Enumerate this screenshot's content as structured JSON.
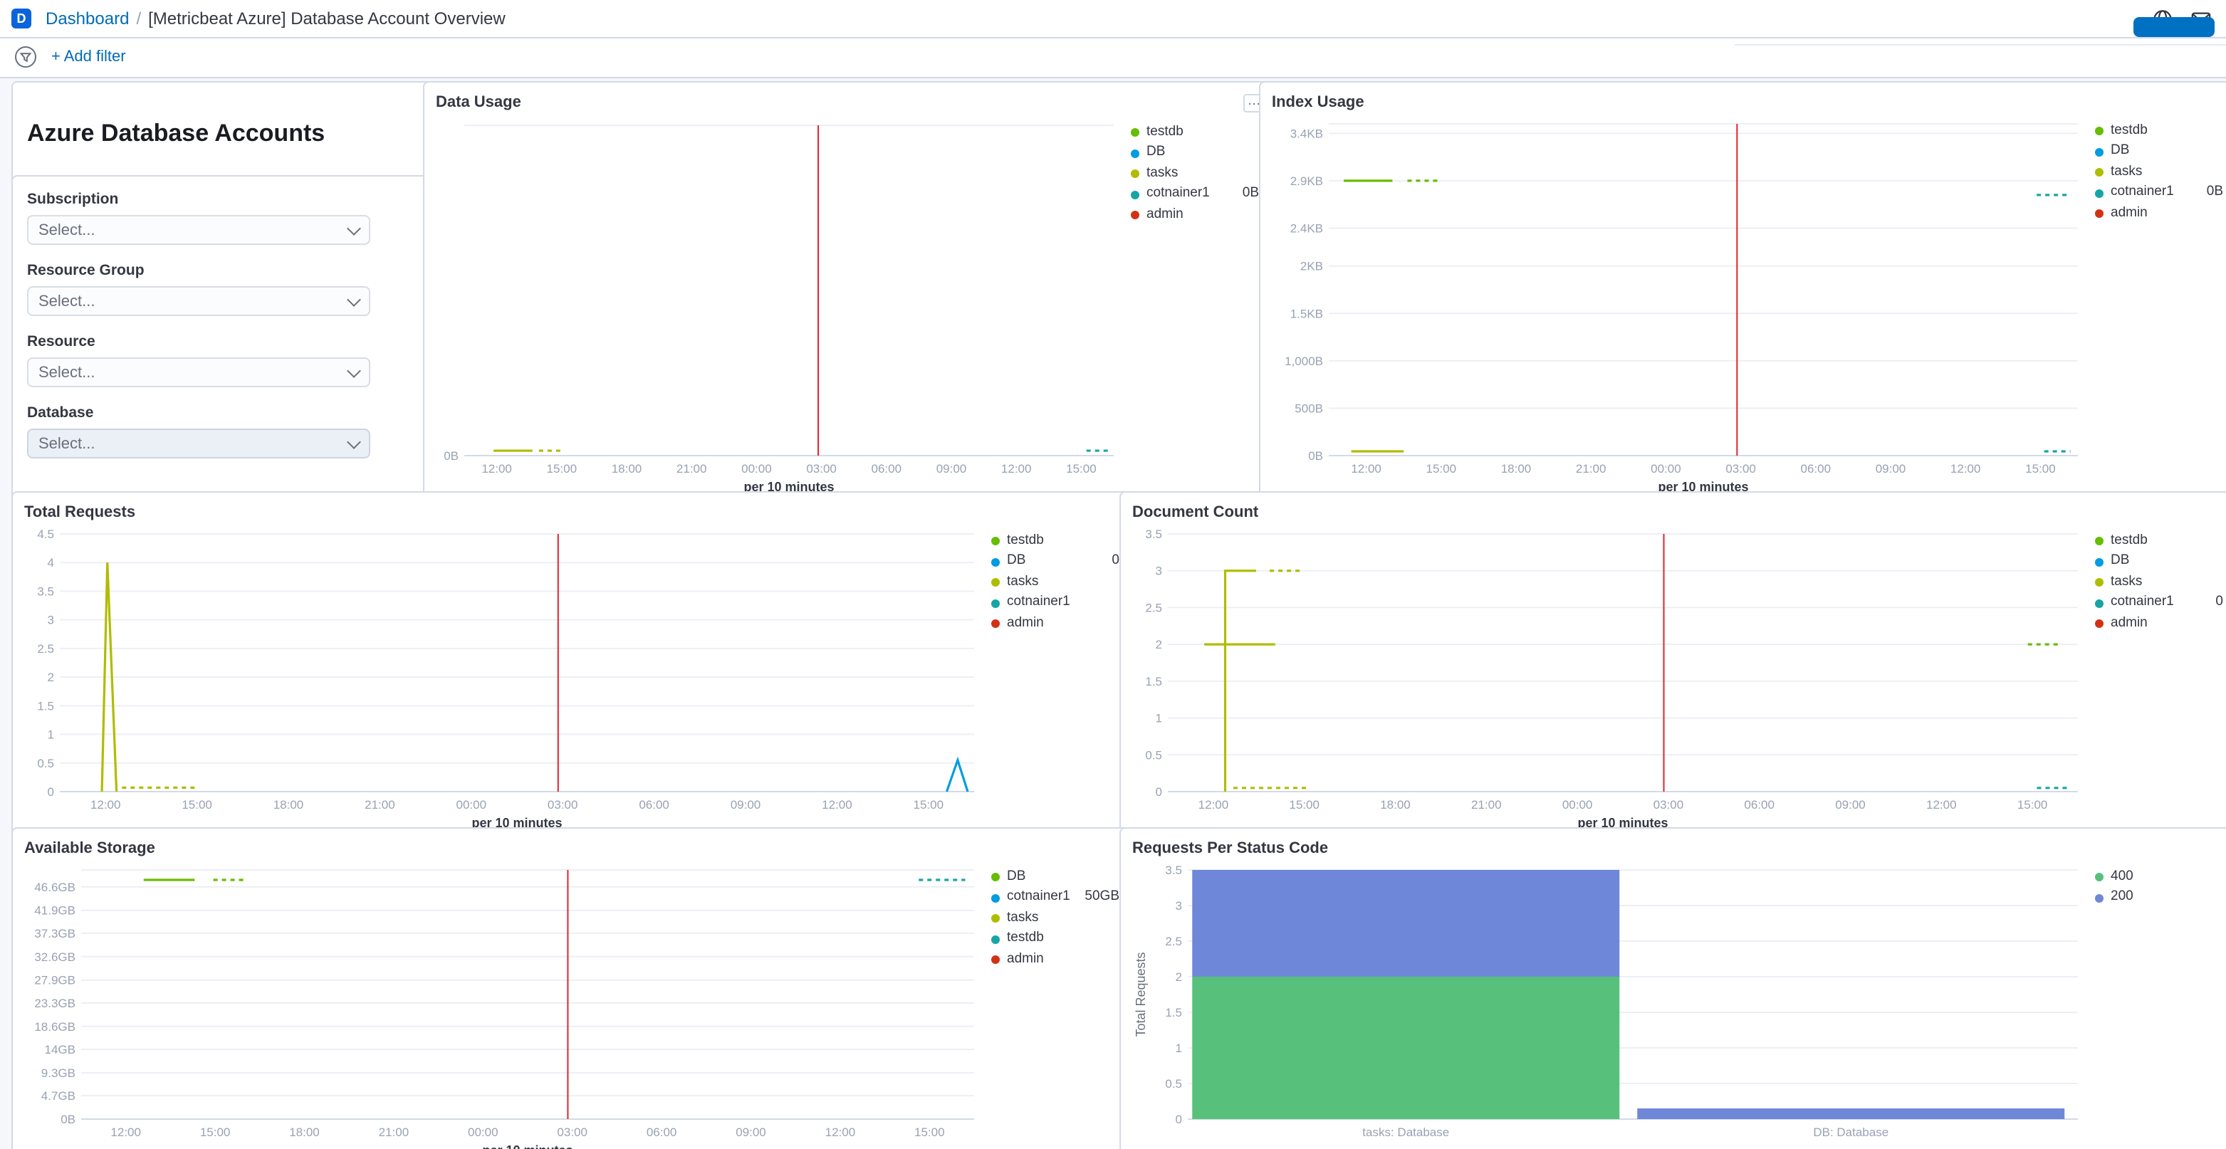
{
  "header": {
    "logo_text": "D",
    "breadcrumb": {
      "root": "Dashboard",
      "sep": "/",
      "current": "[Metricbeat Azure] Database Account Overview"
    }
  },
  "filter_bar": {
    "add_filter": "+ Add filter"
  },
  "icons": {
    "panel_options": "⋯"
  },
  "sidebar": {
    "title": "Azure Database Accounts",
    "controls": [
      {
        "label": "Subscription",
        "placeholder": "Select..."
      },
      {
        "label": "Resource Group",
        "placeholder": "Select..."
      },
      {
        "label": "Resource",
        "placeholder": "Select..."
      },
      {
        "label": "Database",
        "placeholder": "Select..."
      }
    ]
  },
  "colors": {
    "accent_blue": "#0071C2",
    "link_blue": "#006BB4",
    "annotation_red": "#E0232E",
    "series_green": "#68BC00",
    "series_blue": "#009CE0",
    "series_olive": "#B0BC00",
    "series_teal": "#16A5A5",
    "series_red": "#D33115",
    "bar_green": "#57C17B",
    "bar_purple": "#6F87D8"
  },
  "chart_data": [
    {
      "id": "data-usage",
      "type": "line",
      "title": "Data Usage",
      "xlabel": "per 10 minutes",
      "x_tick_labels": [
        "12:00",
        "15:00",
        "18:00",
        "21:00",
        "00:00",
        "03:00",
        "06:00",
        "09:00",
        "12:00",
        "15:00"
      ],
      "ylim": [
        0,
        1
      ],
      "yticks": [
        {
          "label": "0B",
          "value": 0
        }
      ],
      "annotation_x": 0.545,
      "annotation_color": "#E0232E",
      "segments": [
        {
          "name": "tasks",
          "color": "#B0BC00",
          "points": [
            [
              0.045,
              0.015
            ],
            [
              0.105,
              0.015
            ]
          ]
        },
        {
          "name": "tasks",
          "color": "#B0BC00",
          "dash": true,
          "points": [
            [
              0.115,
              0.015
            ],
            [
              0.148,
              0.015
            ]
          ]
        },
        {
          "name": "cotnainer1",
          "color": "#16A5A5",
          "dash": true,
          "points": [
            [
              0.958,
              0.015
            ],
            [
              0.993,
              0.015
            ]
          ]
        }
      ],
      "legend": [
        {
          "label": "testdb",
          "color": "#68BC00"
        },
        {
          "label": "DB",
          "color": "#009CE0"
        },
        {
          "label": "tasks",
          "color": "#B0BC00"
        },
        {
          "label": "cotnainer1",
          "color": "#16A5A5",
          "value": "0B"
        },
        {
          "label": "admin",
          "color": "#D33115"
        }
      ]
    },
    {
      "id": "index-usage",
      "type": "line",
      "title": "Index Usage",
      "xlabel": "per 10 minutes",
      "x_tick_labels": [
        "12:00",
        "15:00",
        "18:00",
        "21:00",
        "00:00",
        "03:00",
        "06:00",
        "09:00",
        "12:00",
        "15:00"
      ],
      "ylim": [
        0,
        3500
      ],
      "yticks": [
        {
          "label": "3.4KB",
          "value": 3400
        },
        {
          "label": "2.9KB",
          "value": 2900
        },
        {
          "label": "2.4KB",
          "value": 2400
        },
        {
          "label": "2KB",
          "value": 2000
        },
        {
          "label": "1.5KB",
          "value": 1500
        },
        {
          "label": "1,000B",
          "value": 1000
        },
        {
          "label": "500B",
          "value": 500
        },
        {
          "label": "0B",
          "value": 0
        }
      ],
      "annotation_x": 0.545,
      "annotation_color": "#E0232E",
      "segments": [
        {
          "name": "testdb",
          "color": "#68BC00",
          "points": [
            [
              0.02,
              2900
            ],
            [
              0.085,
              2900
            ]
          ]
        },
        {
          "name": "testdb",
          "color": "#68BC00",
          "dash": true,
          "points": [
            [
              0.105,
              2900
            ],
            [
              0.15,
              2900
            ]
          ]
        },
        {
          "name": "tasks",
          "color": "#B0BC00",
          "points": [
            [
              0.03,
              45
            ],
            [
              0.1,
              45
            ]
          ]
        },
        {
          "name": "cotnainer1",
          "color": "#16A5A5",
          "dash": true,
          "points": [
            [
              0.945,
              2750
            ],
            [
              0.985,
              2750
            ]
          ]
        },
        {
          "name": "cotnainer1",
          "color": "#16A5A5",
          "dash": true,
          "points": [
            [
              0.955,
              45
            ],
            [
              0.99,
              45
            ]
          ]
        }
      ],
      "legend": [
        {
          "label": "testdb",
          "color": "#68BC00"
        },
        {
          "label": "DB",
          "color": "#009CE0"
        },
        {
          "label": "tasks",
          "color": "#B0BC00"
        },
        {
          "label": "cotnainer1",
          "color": "#16A5A5",
          "value": "0B"
        },
        {
          "label": "admin",
          "color": "#D33115"
        }
      ]
    },
    {
      "id": "total-requests",
      "type": "line",
      "title": "Total Requests",
      "xlabel": "per 10 minutes",
      "x_tick_labels": [
        "12:00",
        "15:00",
        "18:00",
        "21:00",
        "00:00",
        "03:00",
        "06:00",
        "09:00",
        "12:00",
        "15:00"
      ],
      "ylim": [
        0,
        4.5
      ],
      "yticks": [
        {
          "label": "4.5",
          "value": 4.5
        },
        {
          "label": "4",
          "value": 4
        },
        {
          "label": "3.5",
          "value": 3.5
        },
        {
          "label": "3",
          "value": 3
        },
        {
          "label": "2.5",
          "value": 2.5
        },
        {
          "label": "2",
          "value": 2
        },
        {
          "label": "1.5",
          "value": 1.5
        },
        {
          "label": "1",
          "value": 1
        },
        {
          "label": "0.5",
          "value": 0.5
        },
        {
          "label": "0",
          "value": 0
        }
      ],
      "annotation_x": 0.545,
      "annotation_color": "#E0232E",
      "segments": [
        {
          "name": "tasks",
          "color": "#B0BC00",
          "points": [
            [
              0.046,
              0
            ],
            [
              0.052,
              4
            ],
            [
              0.057,
              2
            ],
            [
              0.062,
              0
            ]
          ]
        },
        {
          "name": "tasks",
          "color": "#B0BC00",
          "dash": true,
          "points": [
            [
              0.068,
              0.07
            ],
            [
              0.15,
              0.07
            ]
          ]
        },
        {
          "name": "DB",
          "color": "#009CE0",
          "points": [
            [
              0.97,
              0
            ],
            [
              0.982,
              0.55
            ],
            [
              0.993,
              0
            ]
          ]
        }
      ],
      "legend": [
        {
          "label": "testdb",
          "color": "#68BC00"
        },
        {
          "label": "DB",
          "color": "#009CE0",
          "value": "0"
        },
        {
          "label": "tasks",
          "color": "#B0BC00"
        },
        {
          "label": "cotnainer1",
          "color": "#16A5A5"
        },
        {
          "label": "admin",
          "color": "#D33115"
        }
      ]
    },
    {
      "id": "document-count",
      "type": "line",
      "title": "Document Count",
      "xlabel": "per 10 minutes",
      "x_tick_labels": [
        "12:00",
        "15:00",
        "18:00",
        "21:00",
        "00:00",
        "03:00",
        "06:00",
        "09:00",
        "12:00",
        "15:00"
      ],
      "ylim": [
        0,
        3.5
      ],
      "yticks": [
        {
          "label": "3.5",
          "value": 3.5
        },
        {
          "label": "3",
          "value": 3
        },
        {
          "label": "2.5",
          "value": 2.5
        },
        {
          "label": "2",
          "value": 2
        },
        {
          "label": "1.5",
          "value": 1.5
        },
        {
          "label": "1",
          "value": 1
        },
        {
          "label": "0.5",
          "value": 0.5
        },
        {
          "label": "0",
          "value": 0
        }
      ],
      "annotation_x": 0.545,
      "annotation_color": "#E0232E",
      "segments": [
        {
          "name": "tasks",
          "color": "#B0BC00",
          "points": [
            [
              0.063,
              0
            ],
            [
              0.063,
              3
            ],
            [
              0.097,
              3
            ]
          ]
        },
        {
          "name": "tasks",
          "color": "#B0BC00",
          "dash": true,
          "points": [
            [
              0.112,
              3
            ],
            [
              0.148,
              3
            ]
          ]
        },
        {
          "name": "tasks",
          "color": "#B0BC00",
          "points": [
            [
              0.04,
              2
            ],
            [
              0.118,
              2
            ]
          ]
        },
        {
          "name": "tasks",
          "color": "#B0BC00",
          "dash": true,
          "points": [
            [
              0.072,
              0.05
            ],
            [
              0.155,
              0.05
            ]
          ]
        },
        {
          "name": "testdb",
          "color": "#68BC00",
          "dash": true,
          "points": [
            [
              0.945,
              2
            ],
            [
              0.982,
              2
            ]
          ]
        },
        {
          "name": "cotnainer1",
          "color": "#16A5A5",
          "dash": true,
          "points": [
            [
              0.955,
              0.05
            ],
            [
              0.99,
              0.05
            ]
          ]
        }
      ],
      "legend": [
        {
          "label": "testdb",
          "color": "#68BC00"
        },
        {
          "label": "DB",
          "color": "#009CE0"
        },
        {
          "label": "tasks",
          "color": "#B0BC00"
        },
        {
          "label": "cotnainer1",
          "color": "#16A5A5",
          "value": "0"
        },
        {
          "label": "admin",
          "color": "#D33115"
        }
      ]
    },
    {
      "id": "available-storage",
      "type": "line",
      "title": "Available Storage",
      "xlabel": "per 10 minutes",
      "x_tick_labels": [
        "12:00",
        "15:00",
        "18:00",
        "21:00",
        "00:00",
        "03:00",
        "06:00",
        "09:00",
        "12:00",
        "15:00"
      ],
      "ylim": [
        0,
        50
      ],
      "yticks": [
        {
          "label": "46.6GB",
          "value": 46.6
        },
        {
          "label": "41.9GB",
          "value": 41.9
        },
        {
          "label": "37.3GB",
          "value": 37.3
        },
        {
          "label": "32.6GB",
          "value": 32.6
        },
        {
          "label": "27.9GB",
          "value": 27.9
        },
        {
          "label": "23.3GB",
          "value": 23.3
        },
        {
          "label": "18.6GB",
          "value": 18.6
        },
        {
          "label": "14GB",
          "value": 14
        },
        {
          "label": "9.3GB",
          "value": 9.3
        },
        {
          "label": "4.7GB",
          "value": 4.7
        },
        {
          "label": "0B",
          "value": 0
        }
      ],
      "annotation_x": 0.545,
      "annotation_color": "#E0232E",
      "segments": [
        {
          "name": "DB",
          "color": "#68BC00",
          "points": [
            [
              0.07,
              48
            ],
            [
              0.127,
              48
            ]
          ]
        },
        {
          "name": "DB",
          "color": "#68BC00",
          "dash": true,
          "points": [
            [
              0.148,
              48
            ],
            [
              0.185,
              48
            ]
          ]
        },
        {
          "name": "testdb",
          "color": "#16A5A5",
          "dash": true,
          "points": [
            [
              0.938,
              48
            ],
            [
              0.99,
              48
            ]
          ]
        }
      ],
      "legend": [
        {
          "label": "DB",
          "color": "#68BC00"
        },
        {
          "label": "cotnainer1",
          "color": "#009CE0",
          "value": "50GB"
        },
        {
          "label": "tasks",
          "color": "#B0BC00"
        },
        {
          "label": "testdb",
          "color": "#16A5A5"
        },
        {
          "label": "admin",
          "color": "#D33115"
        }
      ]
    },
    {
      "id": "requests-per-status-code",
      "type": "stacked_bar",
      "title": "Requests Per Status Code",
      "ylabel": "Total Requests",
      "ylim": [
        0,
        3.5
      ],
      "yticks": [
        {
          "label": "3.5",
          "value": 3.5
        },
        {
          "label": "3",
          "value": 3
        },
        {
          "label": "2.5",
          "value": 2.5
        },
        {
          "label": "2",
          "value": 2
        },
        {
          "label": "1.5",
          "value": 1.5
        },
        {
          "label": "1",
          "value": 1
        },
        {
          "label": "0.5",
          "value": 0.5
        },
        {
          "label": "0",
          "value": 0
        }
      ],
      "categories": [
        "tasks: Database",
        "DB: Database"
      ],
      "series": [
        {
          "name": "400",
          "color": "#57C17B",
          "values": [
            2,
            0
          ]
        },
        {
          "name": "200",
          "color": "#6F87D8",
          "values": [
            1.5,
            0.15
          ]
        }
      ],
      "legend": [
        {
          "label": "400",
          "color": "#57C17B"
        },
        {
          "label": "200",
          "color": "#6F87D8"
        }
      ]
    }
  ]
}
